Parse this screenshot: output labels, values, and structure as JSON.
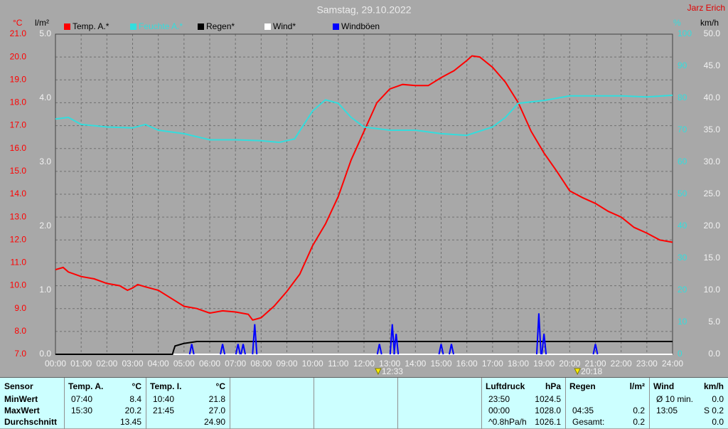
{
  "chart_data": {
    "type": "line",
    "title": "Samstag, 29.10.2022",
    "credit": "Jarz Erich",
    "xlim": [
      0,
      24
    ],
    "xticks": [
      {
        "value": 0,
        "label": "00:00"
      },
      {
        "value": 1,
        "label": "01:00"
      },
      {
        "value": 2,
        "label": "02:00"
      },
      {
        "value": 3,
        "label": "03:00"
      },
      {
        "value": 4,
        "label": "04:00"
      },
      {
        "value": 5,
        "label": "05:00"
      },
      {
        "value": 6,
        "label": "06:00"
      },
      {
        "value": 7,
        "label": "07:00"
      },
      {
        "value": 8,
        "label": "08:00"
      },
      {
        "value": 9,
        "label": "09:00"
      },
      {
        "value": 10,
        "label": "10:00"
      },
      {
        "value": 11,
        "label": "11:00"
      },
      {
        "value": 12,
        "label": "12:00"
      },
      {
        "value": 13,
        "label": "13:00"
      },
      {
        "value": 14,
        "label": "14:00"
      },
      {
        "value": 15,
        "label": "15:00"
      },
      {
        "value": 16,
        "label": "16:00"
      },
      {
        "value": 17,
        "label": "17:00"
      },
      {
        "value": 18,
        "label": "18:00"
      },
      {
        "value": 19,
        "label": "19:00"
      },
      {
        "value": 20,
        "label": "20:00"
      },
      {
        "value": 21,
        "label": "21:00"
      },
      {
        "value": 22,
        "label": "22:00"
      },
      {
        "value": 23,
        "label": "23:00"
      },
      {
        "value": 24,
        "label": "24:00"
      }
    ],
    "ylabel": "°C",
    "ylim": [
      7,
      21
    ],
    "yticks": [
      {
        "value": 7,
        "label": "7.0"
      },
      {
        "value": 8,
        "label": "8.0"
      },
      {
        "value": 9,
        "label": "9.0"
      },
      {
        "value": 10,
        "label": "10.0"
      },
      {
        "value": 11,
        "label": "11.0"
      },
      {
        "value": 12,
        "label": "12.0"
      },
      {
        "value": 13,
        "label": "13.0"
      },
      {
        "value": 14,
        "label": "14.0"
      },
      {
        "value": 15,
        "label": "15.0"
      },
      {
        "value": 16,
        "label": "16.0"
      },
      {
        "value": 17,
        "label": "17.0"
      },
      {
        "value": 18,
        "label": "18.0"
      },
      {
        "value": 19,
        "label": "19.0"
      },
      {
        "value": 20,
        "label": "20.0"
      },
      {
        "value": 21,
        "label": "21.0"
      }
    ],
    "y2label": "l/m²",
    "y2lim": [
      0,
      5
    ],
    "y2ticks": [
      {
        "value": 0,
        "label": "0.0"
      },
      {
        "value": 1,
        "label": "1.0"
      },
      {
        "value": 2,
        "label": "2.0"
      },
      {
        "value": 3,
        "label": "3.0"
      },
      {
        "value": 4,
        "label": "4.0"
      },
      {
        "value": 5,
        "label": "5.0"
      }
    ],
    "y3label": "%",
    "y3lim": [
      0,
      100
    ],
    "y3ticks": [
      0,
      10,
      20,
      30,
      40,
      50,
      60,
      70,
      80,
      90,
      100
    ],
    "y4label": "km/h",
    "y4lim": [
      0,
      50
    ],
    "y4ticks": [
      {
        "value": 0,
        "label": "0.0"
      },
      {
        "value": 5,
        "label": "5.0"
      },
      {
        "value": 10,
        "label": "10.0"
      },
      {
        "value": 15,
        "label": "15.0"
      },
      {
        "value": 20,
        "label": "20.0"
      },
      {
        "value": 25,
        "label": "25.0"
      },
      {
        "value": 30,
        "label": "30.0"
      },
      {
        "value": 35,
        "label": "35.0"
      },
      {
        "value": 40,
        "label": "40.0"
      },
      {
        "value": 45,
        "label": "45.0"
      },
      {
        "value": 50,
        "label": "50.0"
      }
    ],
    "grid": true,
    "series": [
      {
        "name": "Temp. A.*",
        "color": "#ff0000",
        "axis": "y",
        "style": "line",
        "x": [
          0,
          0.3,
          0.5,
          1,
          1.5,
          2,
          2.5,
          2.8,
          3,
          3.2,
          3.5,
          4,
          4.5,
          5,
          5.5,
          6,
          6.5,
          7,
          7.5,
          7.67,
          8,
          8.5,
          9,
          9.5,
          10,
          10.5,
          11,
          11.5,
          12,
          12.5,
          13,
          13.5,
          14,
          14.5,
          15,
          15.5,
          16,
          16.2,
          16.5,
          17,
          17.5,
          18,
          18.5,
          19,
          19.5,
          20,
          20.5,
          21,
          21.5,
          22,
          22.5,
          23,
          23.5,
          24
        ],
        "values": [
          10.7,
          10.8,
          10.6,
          10.4,
          10.3,
          10.1,
          10.0,
          9.8,
          9.9,
          10.05,
          9.95,
          9.8,
          9.45,
          9.1,
          9.0,
          8.8,
          8.9,
          8.85,
          8.75,
          8.5,
          8.6,
          9.1,
          9.75,
          10.5,
          11.75,
          12.7,
          13.9,
          15.5,
          16.75,
          18.0,
          18.6,
          18.8,
          18.75,
          18.75,
          19.1,
          19.4,
          19.85,
          20.05,
          20.0,
          19.55,
          18.9,
          18.0,
          16.75,
          15.8,
          15.0,
          14.15,
          13.85,
          13.6,
          13.25,
          13.0,
          12.55,
          12.3,
          12.0,
          11.9
        ]
      },
      {
        "name": "Feuchte A.*",
        "color": "#33dddd",
        "axis": "y3",
        "style": "line",
        "x": [
          0,
          0.5,
          1,
          2,
          3,
          3.5,
          4,
          5,
          6,
          7,
          8,
          8.7,
          9.3,
          10,
          10.5,
          11,
          11.5,
          12,
          13,
          14,
          15,
          16,
          17,
          17.5,
          18,
          19,
          20,
          21,
          22,
          23,
          24
        ],
        "values": [
          73.5,
          74,
          71.8,
          71,
          70.7,
          71.8,
          70,
          68.9,
          67,
          67,
          66.7,
          66.2,
          67.3,
          76,
          79.5,
          78.4,
          74,
          71,
          70,
          70,
          68.9,
          68.4,
          71,
          74,
          78.4,
          79.3,
          80.7,
          80.7,
          80.7,
          80.4,
          80.9
        ]
      },
      {
        "name": "Wind*",
        "color": "#ffffff",
        "axis": "y4",
        "style": "line",
        "x": [
          0,
          24
        ],
        "values": [
          0,
          0
        ]
      },
      {
        "name": "Regen*",
        "color": "#000000",
        "axis": "y2",
        "style": "line",
        "x": [
          0,
          4.55,
          4.6,
          4.65,
          5,
          5.5,
          24
        ],
        "values": [
          0,
          0,
          0.07,
          0.13,
          0.17,
          0.2,
          0.2
        ]
      },
      {
        "name": "Windböen",
        "color": "#0000ff",
        "axis": "y4",
        "style": "spikes",
        "x": [
          5.3,
          6.5,
          7.1,
          7.3,
          7.75,
          12.6,
          13.1,
          13.25,
          15.0,
          15.4,
          18.8,
          19.0,
          21.0
        ],
        "values": [
          1.6,
          1.6,
          1.6,
          1.6,
          4.7,
          1.6,
          4.7,
          3.2,
          1.6,
          1.6,
          6.4,
          3.2,
          1.6
        ]
      }
    ],
    "annotations": [
      {
        "x": 12.55,
        "label": "12:33",
        "color": "#ffee00"
      },
      {
        "x": 20.3,
        "label": "20:18",
        "color": "#ffee00"
      }
    ]
  },
  "table": {
    "corner": "Sensor",
    "row_labels": [
      "MinWert",
      "MaxWert",
      "Durchschnitt"
    ],
    "groups": [
      {
        "name": "Temp. A.",
        "unit": "°C",
        "rows": [
          [
            "07:40",
            "8.4"
          ],
          [
            "15:30",
            "20.2"
          ],
          [
            null,
            "13.45"
          ]
        ]
      },
      {
        "name": "Temp. I.",
        "unit": "°C",
        "rows": [
          [
            "10:40",
            "21.8"
          ],
          [
            "21:45",
            "27.0"
          ],
          [
            null,
            "24.90"
          ]
        ]
      },
      {
        "name": "Luftdruck",
        "unit": "hPa",
        "rows": [
          [
            "23:50",
            "1024.5"
          ],
          [
            "00:00",
            "1028.0"
          ],
          [
            "^0.8hPa/h",
            "1026.1"
          ]
        ]
      },
      {
        "name": "Regen",
        "unit": "l/m²",
        "rows": [
          [
            null,
            null
          ],
          [
            "04:35",
            "0.2"
          ],
          [
            "Gesamt:",
            "0.2"
          ]
        ]
      },
      {
        "name": "Wind",
        "unit": "km/h",
        "rows": [
          [
            "Ø 10 min.",
            "0.0"
          ],
          [
            "13:05",
            "S 0.2"
          ],
          [
            null,
            "0.0"
          ]
        ]
      }
    ]
  }
}
